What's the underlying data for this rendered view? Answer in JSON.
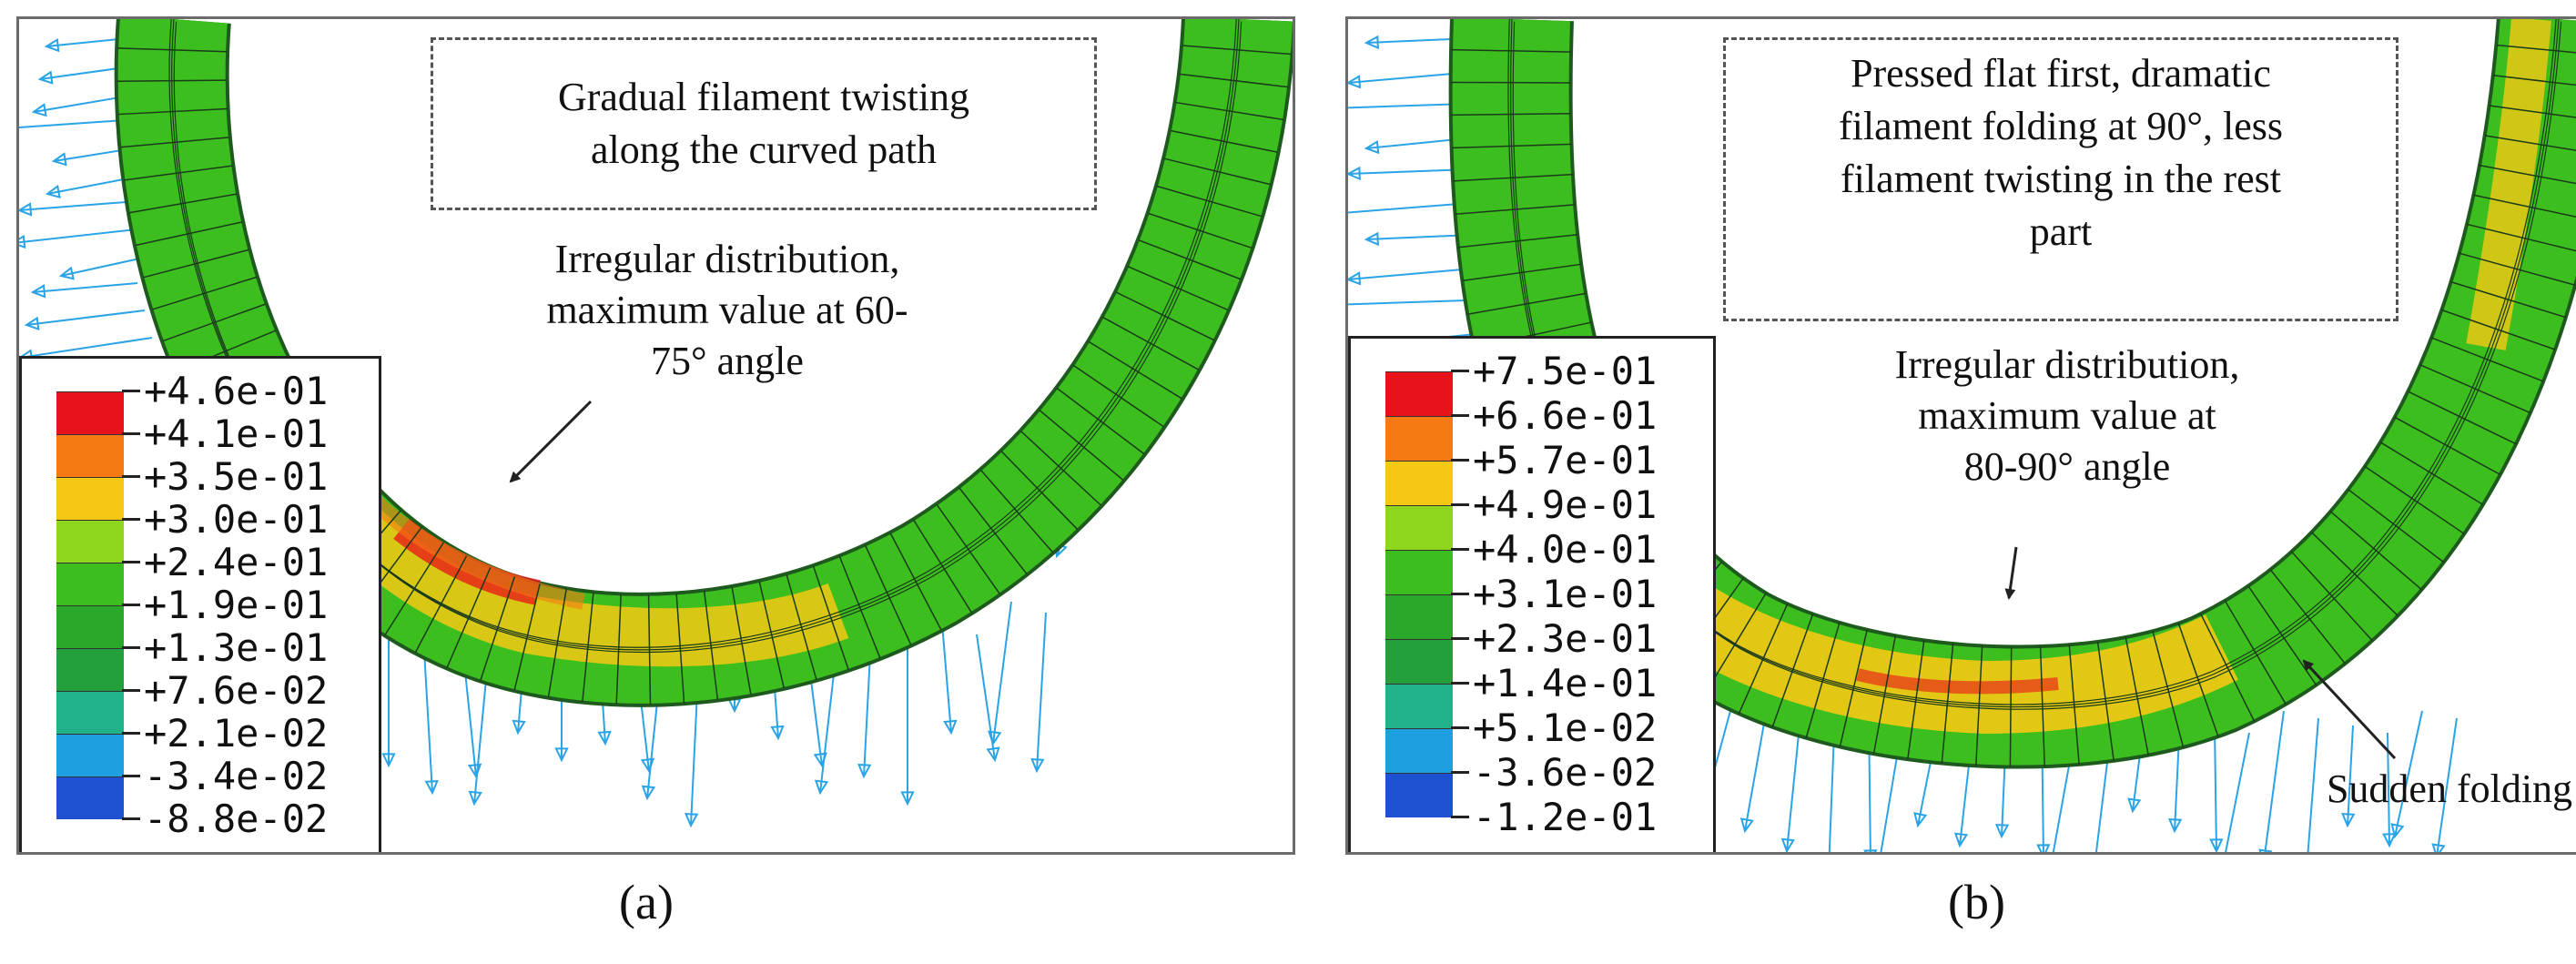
{
  "panel_a": {
    "callout_lines": [
      "Gradual filament twisting",
      "along the curved path"
    ],
    "note_lines": [
      "Irregular distribution,",
      "maximum value at 60-",
      "75° angle"
    ],
    "legend": {
      "values": [
        "+4.6e-01",
        "+4.1e-01",
        "+3.5e-01",
        "+3.0e-01",
        "+2.4e-01",
        "+1.9e-01",
        "+1.3e-01",
        "+7.6e-02",
        "+2.1e-02",
        "-3.4e-02",
        "-8.8e-02"
      ],
      "colors": [
        "#e8121a",
        "#f57a14",
        "#f5c814",
        "#8fd61e",
        "#3cbf1e",
        "#2aa82a",
        "#23a03c",
        "#22b28a",
        "#1ea0e0",
        "#1e50d2",
        "#1420b4"
      ]
    },
    "caption": "(a)"
  },
  "panel_b": {
    "callout_lines": [
      "Pressed flat first, dramatic",
      "filament folding at 90°, less",
      "filament twisting in the rest",
      "part"
    ],
    "note_lines": [
      "Irregular distribution,",
      "maximum value at",
      "80-90° angle"
    ],
    "note2": "Sudden folding",
    "legend": {
      "values": [
        "+7.5e-01",
        "+6.6e-01",
        "+5.7e-01",
        "+4.9e-01",
        "+4.0e-01",
        "+3.1e-01",
        "+2.3e-01",
        "+1.4e-01",
        "+5.1e-02",
        "-3.6e-02",
        "-1.2e-01"
      ],
      "colors": [
        "#e8121a",
        "#f57a14",
        "#f5c814",
        "#8fd61e",
        "#3cbf1e",
        "#2aa82a",
        "#23a03c",
        "#22b28a",
        "#1ea0e0",
        "#1e50d2",
        "#1420b4"
      ]
    },
    "caption": "(b)"
  }
}
